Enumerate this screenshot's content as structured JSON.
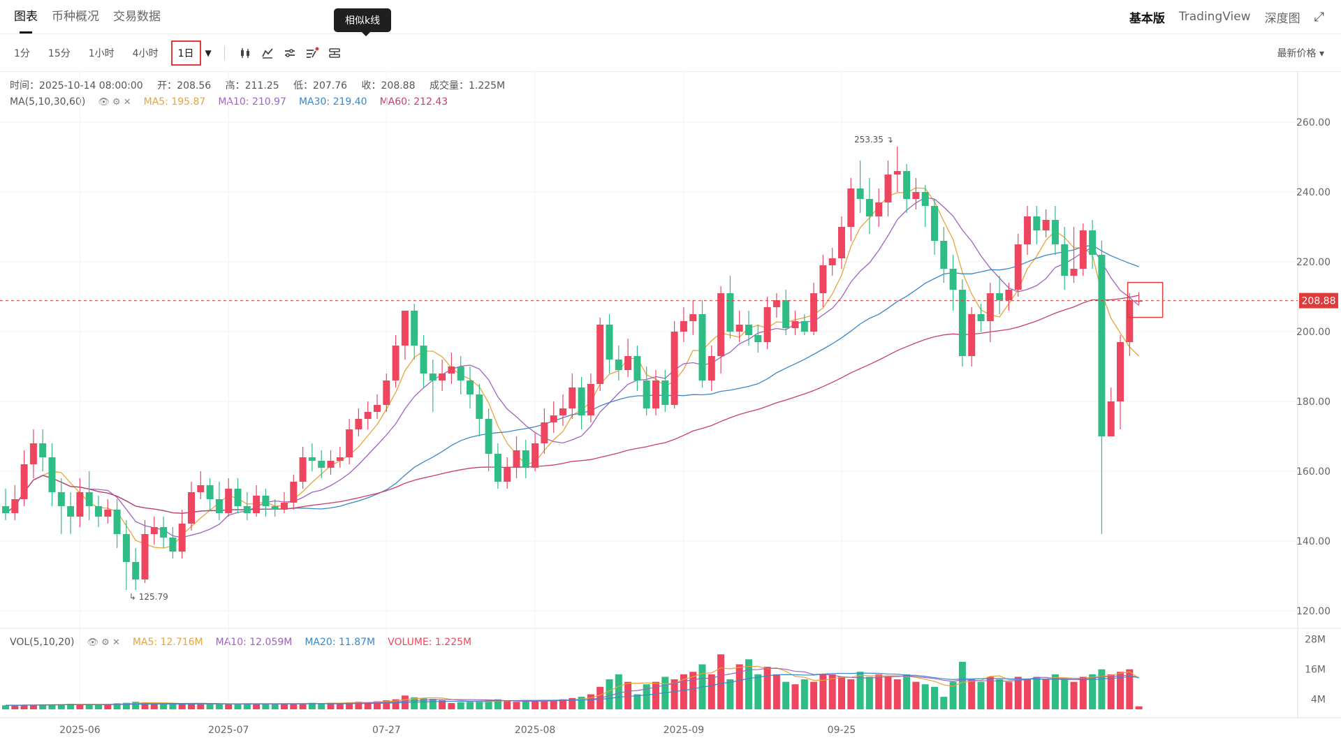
{
  "top_tabs": [
    "图表",
    "币种概况",
    "交易数据"
  ],
  "right_tabs": [
    "基本版",
    "TradingView",
    "深度图"
  ],
  "intervals": [
    "1分",
    "15分",
    "1小时",
    "4小时",
    "1日"
  ],
  "tooltip": "相似k线",
  "price_select": "最新价格",
  "ohlc": {
    "time": "时间：2025-10-14 08:00:00",
    "open": "开：208.56",
    "high": "高：211.25",
    "low": "低：207.76",
    "close": "收：208.88",
    "volume": "成交量：1.225M"
  },
  "ma_legend": {
    "name": "MA(5,10,30,60)",
    "ma5": "MA5: 195.87",
    "ma10": "MA10: 210.97",
    "ma30": "MA30: 219.40",
    "ma60": "MA60: 212.43"
  },
  "vol_legend": {
    "name": "VOL(5,10,20)",
    "ma5": "MA5: 12.716M",
    "ma10": "MA10: 12.059M",
    "ma20": "MA20: 11.87M",
    "volume": "VOLUME: 1.225M"
  },
  "colors": {
    "up": "#f0455f",
    "down": "#2ebd85",
    "ma5": "#e8a43a",
    "ma10": "#9d64bd",
    "ma30": "#3a87c8",
    "ma60": "#c73d6b",
    "last": "#e03b3b"
  },
  "chart_data": {
    "type": "candlestick",
    "last_price": 208.88,
    "last_price_label": "208.88",
    "high_marker": "253.35",
    "low_marker": "125.79",
    "ylim": [
      115,
      275
    ],
    "price_ticks": [
      "260.00",
      "240.00",
      "220.00",
      "200.00",
      "180.00",
      "160.00",
      "140.00",
      "120.00"
    ],
    "volume_ticks": [
      "28M",
      "16M",
      "4M"
    ],
    "x_tick_labels": [
      "2025-06",
      "2025-07",
      "07-27",
      "2025-08",
      "2025-09",
      "09-25"
    ],
    "candles": [
      [
        150,
        148,
        155,
        146
      ],
      [
        148,
        152,
        156,
        146
      ],
      [
        152,
        162,
        166,
        150
      ],
      [
        162,
        168,
        172,
        158
      ],
      [
        168,
        164,
        172,
        160
      ],
      [
        164,
        154,
        168,
        150
      ],
      [
        154,
        150,
        158,
        142
      ],
      [
        150,
        147,
        154,
        142
      ],
      [
        147,
        154,
        158,
        144
      ],
      [
        154,
        150,
        160,
        146
      ],
      [
        150,
        147,
        153,
        144
      ],
      [
        147,
        149,
        152,
        145
      ],
      [
        149,
        142,
        152,
        138
      ],
      [
        142,
        134,
        146,
        126
      ],
      [
        134,
        129,
        138,
        126
      ],
      [
        129,
        142,
        146,
        128
      ],
      [
        142,
        144,
        147,
        139
      ],
      [
        144,
        141,
        147,
        138
      ],
      [
        141,
        137,
        144,
        135
      ],
      [
        137,
        145,
        149,
        135
      ],
      [
        145,
        154,
        157,
        143
      ],
      [
        154,
        156,
        160,
        152
      ],
      [
        156,
        152,
        158,
        149
      ],
      [
        152,
        148,
        157,
        146
      ],
      [
        148,
        155,
        158,
        147
      ],
      [
        155,
        150,
        158,
        148
      ],
      [
        150,
        148,
        154,
        146
      ],
      [
        148,
        153,
        156,
        147
      ],
      [
        153,
        150,
        155,
        147
      ],
      [
        150,
        149,
        152,
        147
      ],
      [
        149,
        151,
        154,
        148
      ],
      [
        151,
        157,
        159,
        149
      ],
      [
        157,
        164,
        167,
        155
      ],
      [
        164,
        163,
        168,
        160
      ],
      [
        163,
        161,
        166,
        158
      ],
      [
        161,
        163,
        166,
        159
      ],
      [
        163,
        164,
        167,
        161
      ],
      [
        164,
        172,
        175,
        162
      ],
      [
        172,
        175,
        178,
        170
      ],
      [
        175,
        177,
        180,
        172
      ],
      [
        177,
        179,
        182,
        175
      ],
      [
        179,
        186,
        188,
        177
      ],
      [
        186,
        196,
        199,
        184
      ],
      [
        196,
        206,
        206,
        192
      ],
      [
        206,
        196,
        208,
        192
      ],
      [
        196,
        188,
        199,
        184
      ],
      [
        188,
        186,
        192,
        177
      ],
      [
        186,
        188,
        192,
        183
      ],
      [
        188,
        190,
        194,
        185
      ],
      [
        190,
        186,
        193,
        182
      ],
      [
        186,
        182,
        190,
        178
      ],
      [
        182,
        175,
        185,
        170
      ],
      [
        175,
        165,
        178,
        160
      ],
      [
        165,
        157,
        168,
        155
      ],
      [
        157,
        161,
        164,
        155
      ],
      [
        161,
        166,
        170,
        158
      ],
      [
        166,
        161,
        169,
        158
      ],
      [
        161,
        168,
        171,
        160
      ],
      [
        168,
        174,
        178,
        165
      ],
      [
        174,
        176,
        180,
        171
      ],
      [
        176,
        178,
        182,
        173
      ],
      [
        178,
        184,
        188,
        175
      ],
      [
        184,
        176,
        187,
        172
      ],
      [
        176,
        185,
        188,
        174
      ],
      [
        185,
        202,
        204,
        183
      ],
      [
        202,
        192,
        205,
        188
      ],
      [
        192,
        189,
        196,
        186
      ],
      [
        189,
        193,
        198,
        187
      ],
      [
        193,
        186,
        196,
        183
      ],
      [
        186,
        178,
        190,
        176
      ],
      [
        178,
        186,
        189,
        176
      ],
      [
        186,
        179,
        189,
        177
      ],
      [
        179,
        200,
        203,
        178
      ],
      [
        200,
        203,
        207,
        197
      ],
      [
        203,
        205,
        209,
        199
      ],
      [
        205,
        186,
        209,
        184
      ],
      [
        186,
        193,
        196,
        183
      ],
      [
        193,
        211,
        213,
        188
      ],
      [
        211,
        200,
        216,
        198
      ],
      [
        200,
        202,
        206,
        197
      ],
      [
        202,
        199,
        206,
        196
      ],
      [
        199,
        197,
        202,
        194
      ],
      [
        197,
        207,
        210,
        195
      ],
      [
        207,
        209,
        211,
        204
      ],
      [
        209,
        201,
        212,
        199
      ],
      [
        201,
        203,
        206,
        199
      ],
      [
        203,
        200,
        205,
        199
      ],
      [
        200,
        211,
        214,
        199
      ],
      [
        211,
        219,
        222,
        207
      ],
      [
        219,
        221,
        224,
        216
      ],
      [
        221,
        230,
        233,
        218
      ],
      [
        230,
        241,
        244,
        226
      ],
      [
        241,
        238,
        249,
        234
      ],
      [
        238,
        233,
        244,
        228
      ],
      [
        233,
        237,
        241,
        230
      ],
      [
        237,
        245,
        249,
        233
      ],
      [
        245,
        246,
        253,
        240
      ],
      [
        246,
        238,
        248,
        234
      ],
      [
        238,
        240,
        244,
        235
      ],
      [
        240,
        236,
        242,
        230
      ],
      [
        236,
        226,
        238,
        222
      ],
      [
        226,
        218,
        230,
        214
      ],
      [
        218,
        212,
        222,
        206
      ],
      [
        212,
        193,
        215,
        190
      ],
      [
        193,
        205,
        207,
        190
      ],
      [
        205,
        203,
        208,
        200
      ],
      [
        203,
        211,
        214,
        197
      ],
      [
        211,
        209,
        216,
        205
      ],
      [
        209,
        212,
        214,
        206
      ],
      [
        212,
        225,
        228,
        210
      ],
      [
        225,
        233,
        236,
        222
      ],
      [
        233,
        229,
        236,
        225
      ],
      [
        229,
        232,
        235,
        227
      ],
      [
        232,
        225,
        236,
        222
      ],
      [
        225,
        216,
        230,
        212
      ],
      [
        216,
        218,
        230,
        214
      ],
      [
        218,
        229,
        231,
        216
      ],
      [
        229,
        222,
        232,
        218
      ],
      [
        222,
        170,
        226,
        142
      ],
      [
        170,
        180,
        184,
        172
      ],
      [
        180,
        197,
        199,
        172
      ],
      [
        197,
        209,
        211,
        193
      ],
      [
        208.56,
        208.88,
        211.25,
        207.76
      ]
    ],
    "volumes": [
      1.6,
      1.6,
      1.8,
      1.8,
      1.9,
      2.0,
      2.0,
      2.2,
      1.9,
      2.0,
      1.8,
      2.1,
      2.4,
      2.6,
      3.0,
      2.8,
      2.4,
      2.2,
      2.0,
      2.1,
      2.3,
      2.2,
      2.0,
      2.2,
      2.1,
      2.0,
      2.4,
      2.2,
      2.0,
      2.3,
      2.2,
      2.1,
      2.4,
      2.6,
      2.4,
      2.6,
      2.5,
      2.8,
      3.0,
      2.9,
      3.2,
      3.6,
      4.0,
      5.5,
      4.8,
      4.6,
      4.2,
      3.6,
      2.5,
      2.8,
      3.0,
      3.2,
      3.6,
      4.0,
      3.2,
      3.0,
      3.6,
      3.1,
      3.4,
      3.6,
      4.0,
      4.5,
      5.0,
      6.0,
      9.0,
      12.0,
      14.0,
      11.0,
      6.0,
      10.0,
      11.0,
      13.0,
      12.0,
      14.0,
      15.0,
      18.0,
      14.0,
      22.0,
      12.0,
      18.0,
      20.0,
      14.0,
      17.0,
      14.0,
      11.0,
      10.0,
      12.0,
      11.0,
      14.0,
      14.0,
      13.0,
      12.0,
      15.0,
      13.0,
      14.0,
      13.0,
      12.0,
      14.0,
      11.0,
      10.0,
      9.0,
      5.0,
      11.0,
      19.0,
      12.0,
      11.0,
      13.0,
      12.0,
      11.0,
      13.0,
      12.0,
      13.0,
      12.0,
      14.0,
      12.0,
      11.0,
      13.0,
      14.0,
      16.0,
      14.0,
      15.0,
      16.0,
      1.2
    ]
  }
}
